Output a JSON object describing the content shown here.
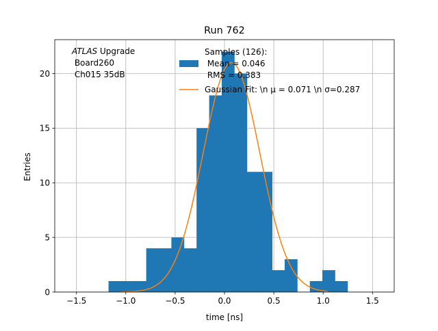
{
  "chart_data": {
    "type": "bar",
    "title": "Run 762",
    "xlabel": "time [ns]",
    "ylabel": "Entries",
    "xlim": [
      -1.72,
      1.72
    ],
    "ylim": [
      0,
      23.1
    ],
    "grid": true,
    "xticks": [
      -1.5,
      -1.0,
      -0.5,
      0.0,
      0.5,
      1.0,
      1.5
    ],
    "xtick_labels": [
      "−1.5",
      "−1.0",
      "−0.5",
      "0.0",
      "0.5",
      "1.0",
      "1.5"
    ],
    "yticks": [
      0,
      5,
      10,
      15,
      20
    ],
    "ytick_labels": [
      "0",
      "5",
      "10",
      "15",
      "20"
    ],
    "bin_width": 0.1275,
    "histogram": {
      "name": "Samples (126):\n Mean = 0.046\n RMS = 0.383",
      "color": "#1f77b4",
      "bins": [
        {
          "x0": -1.175,
          "value": 1
        },
        {
          "x0": -1.048,
          "value": 1
        },
        {
          "x0": -0.92,
          "value": 1
        },
        {
          "x0": -0.793,
          "value": 4
        },
        {
          "x0": -0.665,
          "value": 4
        },
        {
          "x0": -0.538,
          "value": 5
        },
        {
          "x0": -0.41,
          "value": 4
        },
        {
          "x0": -0.283,
          "value": 15
        },
        {
          "x0": -0.155,
          "value": 18
        },
        {
          "x0": -0.028,
          "value": 22
        },
        {
          "x0": 0.1,
          "value": 20
        },
        {
          "x0": 0.227,
          "value": 11
        },
        {
          "x0": 0.355,
          "value": 11
        },
        {
          "x0": 0.482,
          "value": 2
        },
        {
          "x0": 0.61,
          "value": 3
        },
        {
          "x0": 0.737,
          "value": 0
        },
        {
          "x0": 0.865,
          "value": 1
        },
        {
          "x0": 0.992,
          "value": 2
        },
        {
          "x0": 1.12,
          "value": 1
        }
      ]
    },
    "fit": {
      "name": "Gaussian Fit: \\n $\\mu$ = 0.071 \\n $\\sigma$=0.287",
      "legend_label": "Gaussian Fit: \\n μ = 0.071 \\n σ=0.287",
      "color": "#ff7f0e",
      "mu": 0.071,
      "sigma": 0.287,
      "amplitude": 21.0,
      "x_range": [
        -1.05,
        1.05
      ]
    },
    "legend": {
      "placement": "top-center",
      "samples_lines": [
        "Samples (126):",
        " Mean = 0.046",
        " RMS = 0.383"
      ]
    },
    "annotation": {
      "lines": [
        "ATLAS Upgrade",
        " Board260",
        " Ch015 35dB"
      ],
      "italic_word": "ATLAS",
      "rest_of_first_line": " Upgrade"
    }
  }
}
